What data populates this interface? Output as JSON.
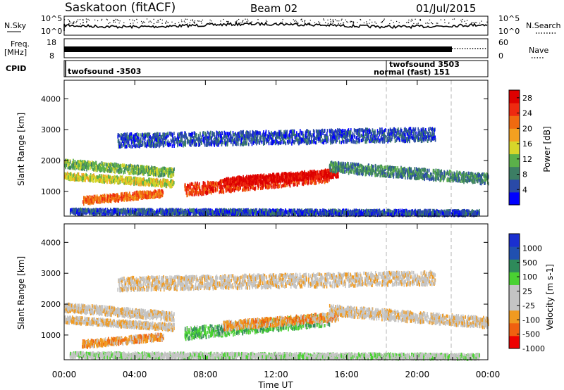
{
  "header": {
    "station": "Saskatoon (fitACF)",
    "beam": "Beam 02",
    "date": "01/Jul/2015"
  },
  "noise_panel": {
    "left_label": "N.Sky",
    "left_ticks": [
      "10^5",
      "10^0"
    ],
    "right_ticks": [
      "10^5",
      "10^0"
    ],
    "right_label": "N.Search"
  },
  "freq_panel": {
    "left_label_1": "Freq.",
    "left_label_2": "[MHz]",
    "left_ticks": [
      "18",
      "8"
    ],
    "right_ticks": [
      "60",
      "0"
    ],
    "right_label": "Nave"
  },
  "cpid_panel": {
    "label": "CPID",
    "segments": [
      "twofsound -3503",
      "twofsound 3503",
      "normal (fast) 151"
    ]
  },
  "colors": {
    "power_scale": [
      "#0000ff",
      "#2a4aa8",
      "#3c7e64",
      "#5bb04a",
      "#d7d62a",
      "#f3a020",
      "#f06a10",
      "#ee2a10",
      "#dd0000"
    ],
    "velocity_scale": [
      "#ee0000",
      "#f06010",
      "#f09a20",
      "#c4c4c4",
      "#c4c4c4",
      "#4ad232",
      "#2e8a5a",
      "#2050b0",
      "#1a2fd0"
    ],
    "dashed": "#b4b4b4"
  },
  "chart_data": [
    {
      "type": "heatmap",
      "parameter": "Power",
      "ylabel": "Slant Range [km]",
      "y_ticks": [
        "1000",
        "2000",
        "3000",
        "4000"
      ],
      "ylim": [
        200,
        4600
      ],
      "colorbar_label": "Power [dB]",
      "colorbar_ticks": [
        "4",
        "8",
        "12",
        "16",
        "20",
        "24",
        "28"
      ],
      "colorbar_range": [
        0,
        30
      ]
    },
    {
      "type": "heatmap",
      "parameter": "Velocity",
      "ylabel": "Slant Range [km]",
      "y_ticks": [
        "1000",
        "2000",
        "3000",
        "4000"
      ],
      "ylim": [
        200,
        4600
      ],
      "colorbar_label": "Velocity [m s-1]",
      "colorbar_ticks": [
        "1000",
        "500",
        "100",
        "25",
        "-25",
        "-100",
        "-500",
        "-1000"
      ],
      "colorbar_range": [
        -1000,
        1000
      ]
    }
  ],
  "x_axis": {
    "label": "Time UT",
    "ticks": [
      "00:00",
      "04:00",
      "08:00",
      "12:00",
      "16:00",
      "20:00",
      "00:00"
    ],
    "dashed_times_hours": [
      18.25,
      21.9
    ]
  }
}
